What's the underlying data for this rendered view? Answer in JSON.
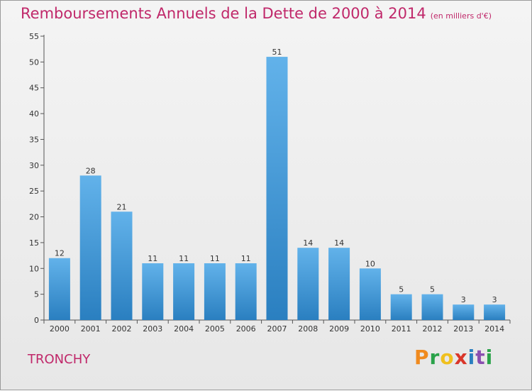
{
  "header": {
    "title": "Remboursements Annuels de la Dette de 2000 à 2014",
    "subtitle": "(en milliers d'€)"
  },
  "footer": {
    "city": "TRONCHY",
    "logo_text": "Proxiti"
  },
  "colors": {
    "title": "#c0286a",
    "bar_light": "#62b2ea",
    "bar_dark": "#2a7fc0",
    "logo_letters": [
      "#f08a1e",
      "#2aa24a",
      "#f0c01e",
      "#d9362a",
      "#2a7fc0",
      "#8a4fb0",
      "#2aa24a"
    ]
  },
  "chart_data": {
    "type": "bar",
    "categories": [
      "2000",
      "2001",
      "2002",
      "2003",
      "2004",
      "2005",
      "2006",
      "2007",
      "2008",
      "2009",
      "2010",
      "2011",
      "2012",
      "2013",
      "2014"
    ],
    "values": [
      12,
      28,
      21,
      11,
      11,
      11,
      11,
      51,
      14,
      14,
      10,
      5,
      5,
      3,
      3
    ],
    "data_labels": [
      "12",
      "28",
      "21",
      "11",
      "11",
      "11",
      "11",
      "51",
      "14",
      "14",
      "10",
      "5",
      "5",
      "3",
      "3"
    ],
    "yticks": [
      "0",
      "5",
      "10",
      "15",
      "20",
      "25",
      "30",
      "35",
      "40",
      "45",
      "50",
      "55"
    ],
    "ylim": [
      0,
      55
    ],
    "grid": false,
    "legend": "none"
  }
}
